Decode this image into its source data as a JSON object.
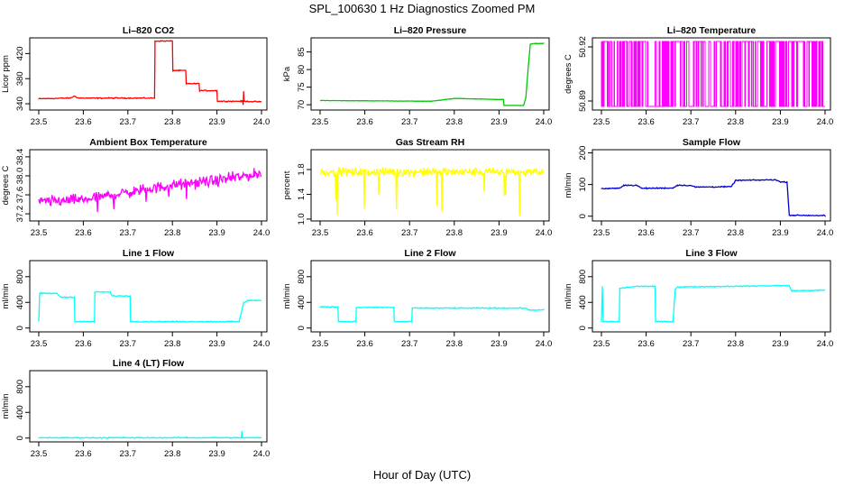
{
  "title": "SPL_100630  1 Hz Diagnostics Zoomed PM",
  "xlabel": "Hour of Day (UTC)",
  "chart_data": [
    {
      "type": "line",
      "title": "Li–820 CO2",
      "ylabel": "Licor ppm",
      "color": "#ff0000",
      "xlim": [
        23.5,
        24.0
      ],
      "ylim": [
        330,
        445
      ],
      "x_ticks": [
        "23.5",
        "23.6",
        "23.7",
        "23.8",
        "23.9",
        "24.0"
      ],
      "y_ticks": [
        340,
        380,
        420
      ],
      "y_tick_labels": [
        "340",
        "380",
        "420"
      ],
      "x": [
        23.5,
        23.57,
        23.58,
        23.59,
        23.76,
        23.761,
        23.8,
        23.801,
        23.83,
        23.831,
        23.86,
        23.861,
        23.9,
        23.901,
        23.958,
        23.959,
        23.96,
        23.961,
        24.0
      ],
      "values": [
        348,
        349,
        352,
        349,
        349,
        440,
        440,
        393,
        393,
        372,
        372,
        361,
        361,
        344,
        344,
        338,
        360,
        344,
        343
      ]
    },
    {
      "type": "line",
      "title": "Li–820 Pressure",
      "ylabel": "kPa",
      "color": "#00c800",
      "xlim": [
        23.5,
        24.0
      ],
      "ylim": [
        68.5,
        89
      ],
      "x_ticks": [
        "23.5",
        "23.6",
        "23.7",
        "23.8",
        "23.9",
        "24.0"
      ],
      "y_ticks": [
        70,
        75,
        80,
        85
      ],
      "y_tick_labels": [
        "70",
        "75",
        "80",
        "85"
      ],
      "x": [
        23.5,
        23.75,
        23.8,
        23.9,
        23.91,
        23.911,
        23.955,
        23.96,
        23.965,
        23.97,
        23.98,
        24.0
      ],
      "values": [
        71.2,
        71.0,
        71.8,
        71.5,
        71.5,
        69.8,
        69.8,
        72,
        80,
        87.2,
        87.4,
        87.4
      ]
    },
    {
      "type": "line",
      "title": "Li–820 Temperature",
      "ylabel": "degrees C",
      "color": "#ff00ff",
      "xlim": [
        23.5,
        24.0
      ],
      "ylim": [
        50.885,
        50.925
      ],
      "x_ticks": [
        "23.5",
        "23.6",
        "23.7",
        "23.8",
        "23.9",
        "24.0"
      ],
      "y_ticks": [
        50.89,
        50.92
      ],
      "y_tick_labels": [
        "50.89",
        "50.92"
      ],
      "x": [
        23.5,
        24.0
      ],
      "values": [
        50.9,
        50.9
      ],
      "note": "1 Hz signal toggling between 50.887 and 50.923 (one-bit quantization)"
    },
    {
      "type": "line",
      "title": "Ambient Box Temperature",
      "ylabel": "degrees C",
      "color": "#ff00ff",
      "xlim": [
        23.5,
        24.0
      ],
      "ylim": [
        37.05,
        38.55
      ],
      "x_ticks": [
        "23.5",
        "23.6",
        "23.7",
        "23.8",
        "23.9",
        "24.0"
      ],
      "y_ticks": [
        37.2,
        37.6,
        38.0,
        38.4
      ],
      "y_tick_labels": [
        "37.2",
        "37.6",
        "38.0",
        "38.4"
      ],
      "x": [
        23.5,
        23.6,
        23.7,
        23.8,
        23.9,
        24.0
      ],
      "values": [
        37.45,
        37.5,
        37.65,
        37.8,
        37.9,
        38.05
      ]
    },
    {
      "type": "line",
      "title": "Gas Stream RH",
      "ylabel": "percent",
      "color": "#ffff00",
      "xlim": [
        23.5,
        24.0
      ],
      "ylim": [
        0.97,
        2.12
      ],
      "x_ticks": [
        "23.5",
        "23.6",
        "23.7",
        "23.8",
        "23.9",
        "24.0"
      ],
      "y_ticks": [
        1.0,
        1.4,
        1.8
      ],
      "y_tick_labels": [
        "1.0",
        "1.4",
        "1.8"
      ],
      "x": [
        23.5,
        24.0
      ],
      "values": [
        1.76,
        1.76
      ]
    },
    {
      "type": "line",
      "title": "Sample Flow",
      "ylabel": "ml/min",
      "color": "#0000cd",
      "xlim": [
        23.5,
        24.0
      ],
      "ylim": [
        -15,
        210
      ],
      "x_ticks": [
        "23.5",
        "23.6",
        "23.7",
        "23.8",
        "23.9",
        "24.0"
      ],
      "y_ticks": [
        0,
        100,
        200
      ],
      "y_tick_labels": [
        "0",
        "100",
        "200"
      ],
      "x": [
        23.5,
        23.54,
        23.55,
        23.58,
        23.59,
        23.66,
        23.67,
        23.7,
        23.71,
        23.79,
        23.8,
        23.89,
        23.9,
        23.915,
        23.92,
        24.0
      ],
      "values": [
        87,
        88,
        98,
        97,
        88,
        89,
        98,
        97,
        92,
        93,
        113,
        115,
        108,
        108,
        3,
        2
      ]
    },
    {
      "type": "line",
      "title": "Line 1 Flow",
      "ylabel": "ml/min",
      "color": "#00ffff",
      "xlim": [
        23.5,
        24.0
      ],
      "ylim": [
        -60,
        1050
      ],
      "x_ticks": [
        "23.5",
        "23.6",
        "23.7",
        "23.8",
        "23.9",
        "24.0"
      ],
      "y_ticks": [
        0,
        400,
        800
      ],
      "y_tick_labels": [
        "0",
        "400",
        "800"
      ],
      "x": [
        23.5,
        23.502,
        23.54,
        23.55,
        23.58,
        23.581,
        23.625,
        23.626,
        23.66,
        23.665,
        23.705,
        23.706,
        23.95,
        23.96,
        23.97,
        24.0
      ],
      "values": [
        100,
        540,
        540,
        480,
        480,
        100,
        100,
        560,
        560,
        500,
        500,
        100,
        100,
        400,
        430,
        430
      ]
    },
    {
      "type": "line",
      "title": "Line 2 Flow",
      "ylabel": "ml/min",
      "color": "#00ffff",
      "xlim": [
        23.5,
        24.0
      ],
      "ylim": [
        -60,
        1050
      ],
      "x_ticks": [
        "23.5",
        "23.6",
        "23.7",
        "23.8",
        "23.9",
        "24.0"
      ],
      "y_ticks": [
        0,
        400,
        800
      ],
      "y_tick_labels": [
        "0",
        "400",
        "800"
      ],
      "x": [
        23.5,
        23.54,
        23.541,
        23.58,
        23.581,
        23.665,
        23.666,
        23.705,
        23.706,
        23.96,
        23.965,
        24.0
      ],
      "values": [
        330,
        330,
        100,
        100,
        320,
        320,
        100,
        100,
        310,
        310,
        280,
        280
      ]
    },
    {
      "type": "line",
      "title": "Line 3 Flow",
      "ylabel": "ml/min",
      "color": "#00ffff",
      "xlim": [
        23.5,
        24.0
      ],
      "ylim": [
        -60,
        1050
      ],
      "x_ticks": [
        "23.5",
        "23.6",
        "23.7",
        "23.8",
        "23.9",
        "24.0"
      ],
      "y_ticks": [
        0,
        400,
        800
      ],
      "y_tick_labels": [
        "0",
        "400",
        "800"
      ],
      "x": [
        23.5,
        23.502,
        23.504,
        23.54,
        23.541,
        23.58,
        23.62,
        23.621,
        23.66,
        23.665,
        23.67,
        23.9,
        23.92,
        23.925,
        24.0
      ],
      "values": [
        100,
        650,
        100,
        100,
        620,
        650,
        650,
        100,
        100,
        600,
        640,
        660,
        660,
        580,
        590
      ]
    },
    {
      "type": "line",
      "title": "Line 4 (LT) Flow",
      "ylabel": "ml/min",
      "color": "#00ffff",
      "xlim": [
        23.5,
        24.0
      ],
      "ylim": [
        -60,
        1050
      ],
      "x_ticks": [
        "23.5",
        "23.6",
        "23.7",
        "23.8",
        "23.9",
        "24.0"
      ],
      "y_ticks": [
        0,
        400,
        800
      ],
      "y_tick_labels": [
        "0",
        "400",
        "800"
      ],
      "x": [
        23.5,
        23.955,
        23.956,
        23.957,
        24.0
      ],
      "values": [
        5,
        5,
        110,
        5,
        5
      ]
    }
  ]
}
